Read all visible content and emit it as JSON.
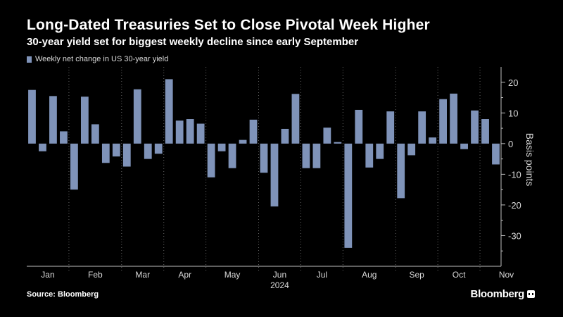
{
  "header": {
    "title": "Long-Dated Treasuries Set to Close Pivotal Week Higher",
    "subtitle": "30-year yield set for biggest weekly decline since early September"
  },
  "footer": {
    "source": "Source: Bloomberg",
    "brand": "Bloomberg"
  },
  "colors": {
    "bar": "#7f93b9",
    "background": "#000000",
    "gridline": "#666666",
    "axis_text": "#d9d9d9"
  },
  "chart_data": {
    "type": "bar",
    "legend": [
      "Weekly net change in US 30-year yield"
    ],
    "legend_position": "top-left",
    "ylabel": "Basis points",
    "ylim": [
      -40,
      25
    ],
    "yticks": [
      -30,
      -20,
      -10,
      0,
      10,
      20
    ],
    "grid": "vertical dotted at month boundaries",
    "year_label": "2024",
    "months": [
      "Jan",
      "Feb",
      "Mar",
      "Apr",
      "May",
      "Jun",
      "Jul",
      "Aug",
      "Sep",
      "Oct",
      "Nov"
    ],
    "month_week_counts": [
      4,
      5,
      4,
      4,
      5,
      4,
      4,
      5,
      4,
      4,
      5
    ],
    "series": [
      {
        "name": "Weekly net change in US 30-year yield",
        "values": [
          17.5,
          -2.5,
          15.5,
          4.0,
          -15.0,
          15.3,
          6.3,
          -6.3,
          -4.2,
          -7.5,
          17.7,
          -5.0,
          -3.3,
          21.0,
          7.5,
          8.0,
          6.5,
          -11.0,
          -2.5,
          -8.0,
          1.2,
          7.8,
          -9.5,
          -20.5,
          4.8,
          16.2,
          -8.0,
          -8.0,
          5.2,
          0.5,
          -34.0,
          11.0,
          -7.8,
          -5.0,
          10.5,
          -17.8,
          -3.8,
          10.5,
          2.0,
          14.5,
          16.3,
          -1.8,
          10.8,
          8.0,
          -6.8
        ]
      }
    ]
  }
}
